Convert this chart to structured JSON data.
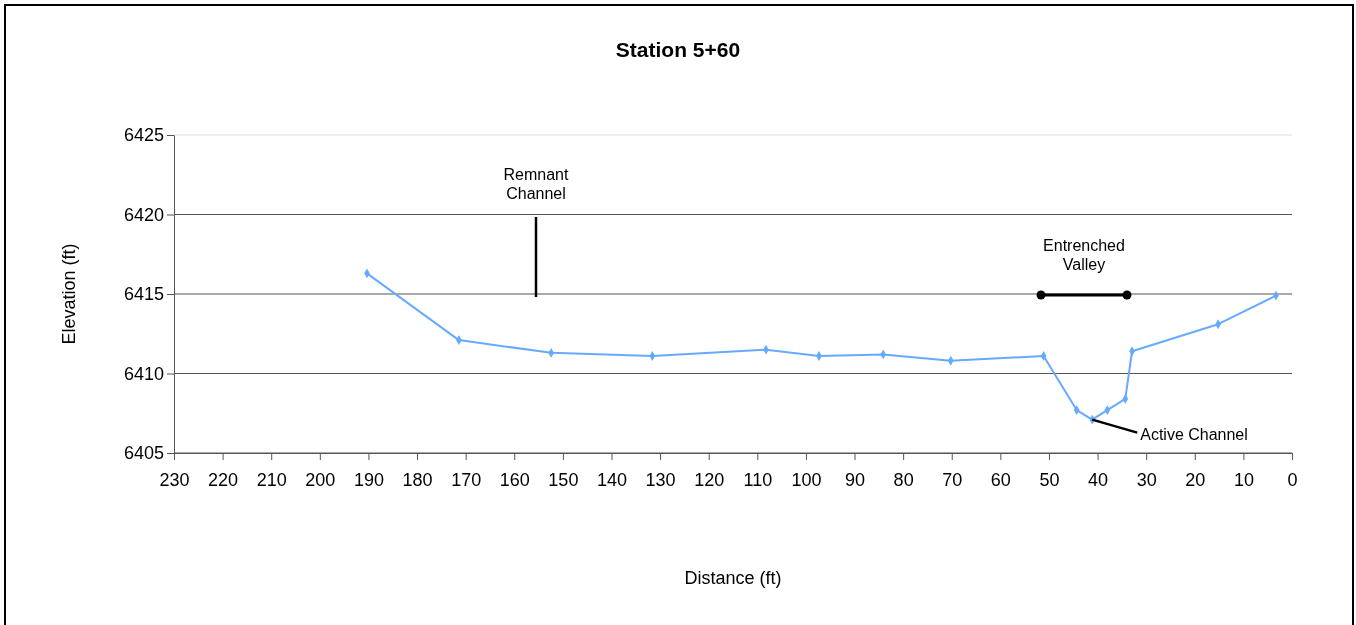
{
  "chart_data": {
    "type": "line",
    "title": "Station 5+60",
    "xlabel": "Distance (ft)",
    "ylabel": "Elevation (ft)",
    "xlim": [
      230,
      0
    ],
    "xticks": [
      230,
      220,
      210,
      200,
      190,
      180,
      170,
      160,
      150,
      140,
      130,
      120,
      110,
      100,
      90,
      80,
      70,
      60,
      50,
      40,
      30,
      20,
      10,
      0
    ],
    "ylim": [
      6405,
      6425
    ],
    "yticks": [
      6405,
      6410,
      6415,
      6420,
      6425
    ],
    "grid": "y",
    "marker": "diamond",
    "line_style": "solid",
    "series": [
      {
        "color": "#66aaff",
        "x": [
          190.3,
          171.4,
          152.4,
          131.6,
          108.2,
          97.3,
          84.1,
          70.2,
          51.1,
          44.3,
          41.1,
          38.0,
          34.3,
          32.9,
          15.2,
          3.3
        ],
        "values": [
          6416.3,
          6412.1,
          6411.3,
          6411.1,
          6411.5,
          6411.1,
          6411.2,
          6410.8,
          6411.1,
          6407.7,
          6407.1,
          6407.7,
          6408.4,
          6411.4,
          6413.1,
          6414.9
        ]
      }
    ],
    "annotations": [
      "Remnant\nChannel",
      "Entrenched\nValley",
      {
        "text": "Active Channel",
        "x": 41.1,
        "y": 6407.1
      }
    ]
  }
}
